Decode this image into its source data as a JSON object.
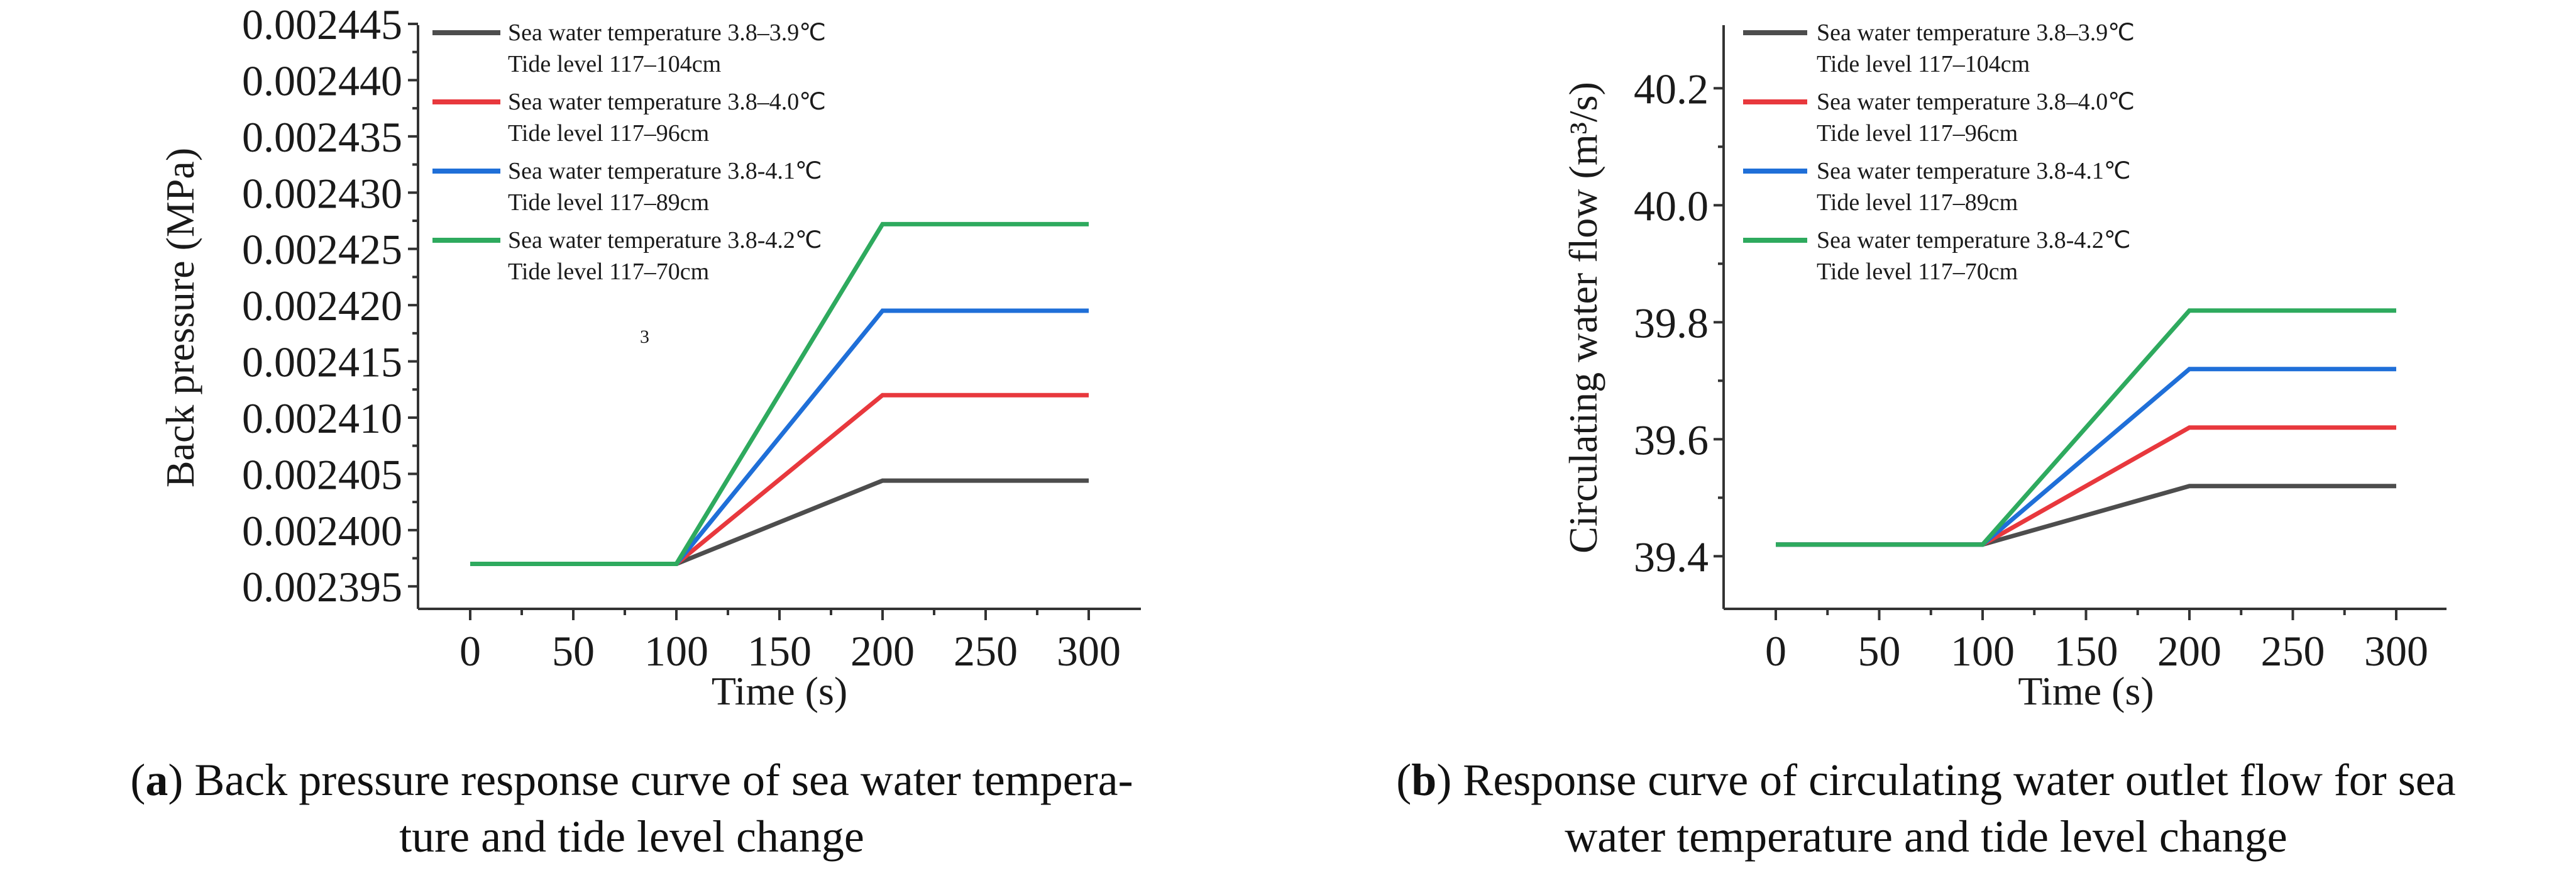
{
  "chart_data": [
    {
      "type": "line",
      "panel_id": "a",
      "xlabel": "Time (s)",
      "ylabel": "Back pressure (MPa)",
      "xlim": [
        0,
        300
      ],
      "ylim": [
        0.002393,
        0.002445
      ],
      "x_ticks": [
        0,
        50,
        100,
        150,
        200,
        250,
        300
      ],
      "x_tick_labels": [
        "0",
        "50",
        "100",
        "150",
        "200",
        "250",
        "300"
      ],
      "y_ticks": [
        0.002395,
        0.0024,
        0.002405,
        0.00241,
        0.002415,
        0.00242,
        0.002425,
        0.00243,
        0.002435,
        0.00244,
        0.002445
      ],
      "y_tick_labels": [
        "0.002395",
        "0.002400",
        "0.002405",
        "0.002410",
        "0.002415",
        "0.002420",
        "0.002425",
        "0.002430",
        "0.002435",
        "0.002440",
        "0.002445"
      ],
      "stray_annotation": "3",
      "series": [
        {
          "name_line1": "Sea water temperature 3.8–3.9℃",
          "name_line2": "Tide level 117–104cm",
          "color": "#4d4d4d",
          "x": [
            0,
            100,
            200,
            300
          ],
          "y": [
            0.002397,
            0.002397,
            0.0024044,
            0.0024044
          ]
        },
        {
          "name_line1": "Sea water temperature 3.8–4.0℃",
          "name_line2": "Tide level 117–96cm",
          "color": "#e8383d",
          "x": [
            0,
            100,
            200,
            300
          ],
          "y": [
            0.002397,
            0.002397,
            0.002412,
            0.002412
          ]
        },
        {
          "name_line1": "Sea water temperature 3.8-4.1℃",
          "name_line2": "Tide level 117–89cm",
          "color": "#1f6fd8",
          "x": [
            0,
            100,
            200,
            300
          ],
          "y": [
            0.002397,
            0.002397,
            0.0024195,
            0.0024195
          ]
        },
        {
          "name_line1": "Sea water temperature 3.8-4.2℃",
          "name_line2": "Tide level 117–70cm",
          "color": "#2eaa5e",
          "x": [
            0,
            100,
            200,
            300
          ],
          "y": [
            0.002397,
            0.002397,
            0.0024272,
            0.0024272
          ]
        }
      ]
    },
    {
      "type": "line",
      "panel_id": "b",
      "xlabel": "Time (s)",
      "ylabel": "Circulating water flow (m³/s)",
      "xlim": [
        0,
        300
      ],
      "ylim": [
        39.31,
        40.31
      ],
      "x_ticks": [
        0,
        50,
        100,
        150,
        200,
        250,
        300
      ],
      "x_tick_labels": [
        "0",
        "50",
        "100",
        "150",
        "200",
        "250",
        "300"
      ],
      "y_ticks": [
        39.4,
        39.6,
        39.8,
        40.0,
        40.2
      ],
      "y_tick_labels": [
        "39.4",
        "39.6",
        "39.8",
        "40.0",
        "40.2"
      ],
      "series": [
        {
          "name_line1": "Sea water temperature 3.8–3.9℃",
          "name_line2": "Tide level 117–104cm",
          "color": "#4d4d4d",
          "x": [
            0,
            100,
            200,
            300
          ],
          "y": [
            39.42,
            39.42,
            39.52,
            39.52
          ]
        },
        {
          "name_line1": "Sea water temperature 3.8–4.0℃",
          "name_line2": "Tide level 117–96cm",
          "color": "#e8383d",
          "x": [
            0,
            100,
            200,
            300
          ],
          "y": [
            39.42,
            39.42,
            39.62,
            39.62
          ]
        },
        {
          "name_line1": "Sea water temperature 3.8-4.1℃",
          "name_line2": "Tide level 117–89cm",
          "color": "#1f6fd8",
          "x": [
            0,
            100,
            200,
            300
          ],
          "y": [
            39.42,
            39.42,
            39.72,
            39.72
          ]
        },
        {
          "name_line1": "Sea water temperature 3.8-4.2℃",
          "name_line2": "Tide level 117–70cm",
          "color": "#2eaa5e",
          "x": [
            0,
            100,
            200,
            300
          ],
          "y": [
            39.42,
            39.42,
            39.82,
            39.82
          ]
        }
      ]
    }
  ],
  "captions": {
    "a": {
      "label": "a",
      "line1": ") Back pressure response curve of sea water tempera-",
      "line2": "ture and tide level change"
    },
    "b": {
      "label": "b",
      "line1": ") Response curve of circulating water outlet flow for sea",
      "line2": "water temperature and tide level change"
    }
  }
}
